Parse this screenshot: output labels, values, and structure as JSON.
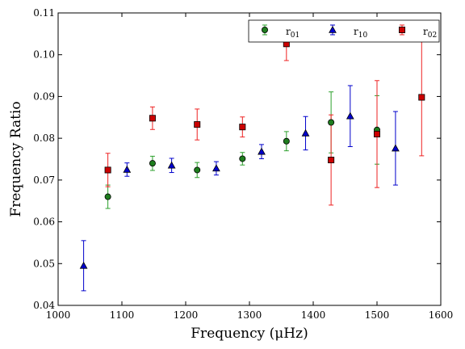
{
  "chart_data": {
    "type": "scatter",
    "xlabel": "Frequency  (μHz)",
    "ylabel": "Frequency Ratio",
    "xlim": [
      1000,
      1600
    ],
    "ylim": [
      0.04,
      0.11
    ],
    "xticks": [
      "1000",
      "1100",
      "1200",
      "1300",
      "1400",
      "1500",
      "1600"
    ],
    "yticks": [
      "0.04",
      "0.05",
      "0.06",
      "0.07",
      "0.08",
      "0.09",
      "0.10",
      "0.11"
    ],
    "grid": false,
    "legend_position": "top-right",
    "series": [
      {
        "name": "r01",
        "name_base": "r",
        "name_sub": "01",
        "marker": "circle",
        "color": "#1e7d1e",
        "error_color": "#2ca02c",
        "points": [
          {
            "x": 1078,
            "y": 0.066,
            "err": 0.0028
          },
          {
            "x": 1148,
            "y": 0.074,
            "err": 0.0017
          },
          {
            "x": 1218,
            "y": 0.0724,
            "err": 0.0018
          },
          {
            "x": 1289,
            "y": 0.0751,
            "err": 0.0015
          },
          {
            "x": 1358,
            "y": 0.0793,
            "err": 0.0023
          },
          {
            "x": 1428,
            "y": 0.0838,
            "err": 0.0073
          },
          {
            "x": 1500,
            "y": 0.082,
            "err": 0.0082
          }
        ]
      },
      {
        "name": "r10",
        "name_base": "r",
        "name_sub": "10",
        "marker": "triangle",
        "color": "#0000cc",
        "error_color": "#0000cc",
        "points": [
          {
            "x": 1040,
            "y": 0.0495,
            "err": 0.006
          },
          {
            "x": 1108,
            "y": 0.0725,
            "err": 0.0016
          },
          {
            "x": 1178,
            "y": 0.0735,
            "err": 0.0017
          },
          {
            "x": 1248,
            "y": 0.0728,
            "err": 0.0016
          },
          {
            "x": 1319,
            "y": 0.0768,
            "err": 0.0017
          },
          {
            "x": 1388,
            "y": 0.0812,
            "err": 0.004
          },
          {
            "x": 1458,
            "y": 0.0853,
            "err": 0.0073
          },
          {
            "x": 1529,
            "y": 0.0776,
            "err": 0.0088
          }
        ]
      },
      {
        "name": "r02",
        "name_base": "r",
        "name_sub": "02",
        "marker": "square",
        "color": "#cc0000",
        "error_color": "#ee2222",
        "points": [
          {
            "x": 1078,
            "y": 0.0724,
            "err": 0.004
          },
          {
            "x": 1148,
            "y": 0.0848,
            "err": 0.0027
          },
          {
            "x": 1218,
            "y": 0.0833,
            "err": 0.0037
          },
          {
            "x": 1289,
            "y": 0.0827,
            "err": 0.0024
          },
          {
            "x": 1358,
            "y": 0.1026,
            "err": 0.004
          },
          {
            "x": 1428,
            "y": 0.0748,
            "err": 0.0108
          },
          {
            "x": 1500,
            "y": 0.081,
            "err": 0.0128
          },
          {
            "x": 1570,
            "y": 0.0898,
            "err": 0.014
          }
        ]
      }
    ]
  }
}
